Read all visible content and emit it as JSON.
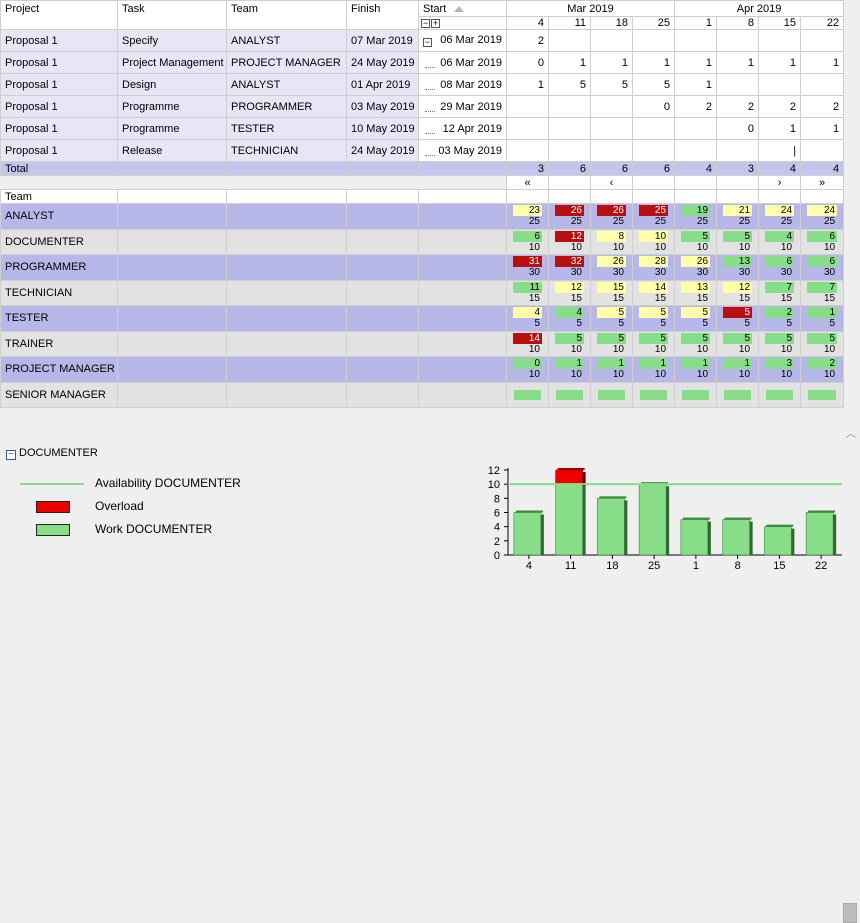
{
  "columns": {
    "project": "Project",
    "task": "Task",
    "team": "Team",
    "finish": "Finish",
    "start": "Start"
  },
  "months": [
    "Mar 2019",
    "Apr 2019"
  ],
  "weeks": [
    "4",
    "11",
    "18",
    "25",
    "1",
    "8",
    "15",
    "22"
  ],
  "tasks": [
    {
      "project": "Proposal 1",
      "task": "Specify",
      "team": "ANALYST",
      "finish": "07 Mar 2019",
      "start": "06 Mar 2019",
      "toggle": true,
      "work": [
        "2",
        "",
        "",
        "",
        "",
        "",
        "",
        ""
      ]
    },
    {
      "project": "Proposal 1",
      "task": "Project Management",
      "team": "PROJECT MANAGER",
      "finish": "24 May 2019",
      "start": "06 Mar 2019",
      "toggle": false,
      "work": [
        "0",
        "1",
        "1",
        "1",
        "1",
        "1",
        "1",
        "1"
      ]
    },
    {
      "project": "Proposal 1",
      "task": "Design",
      "team": "ANALYST",
      "finish": "01 Apr 2019",
      "start": "08 Mar 2019",
      "toggle": false,
      "work": [
        "1",
        "5",
        "5",
        "5",
        "1",
        "",
        "",
        ""
      ]
    },
    {
      "project": "Proposal 1",
      "task": "Programme",
      "team": "PROGRAMMER",
      "finish": "03 May 2019",
      "start": "29 Mar 2019",
      "toggle": false,
      "work": [
        "",
        "",
        "",
        "0",
        "2",
        "2",
        "2",
        "2"
      ]
    },
    {
      "project": "Proposal 1",
      "task": "Programme",
      "team": "TESTER",
      "finish": "10 May 2019",
      "start": "12 Apr 2019",
      "toggle": false,
      "work": [
        "",
        "",
        "",
        "",
        "",
        "0",
        "1",
        "1"
      ]
    },
    {
      "project": "Proposal 1",
      "task": "Release",
      "team": "TECHNICIAN",
      "finish": "24 May 2019",
      "start": "03 May 2019",
      "toggle": false,
      "work": [
        "",
        "",
        "",
        "",
        "",
        "",
        "|",
        ""
      ]
    }
  ],
  "total": {
    "label": "Total",
    "values": [
      "3",
      "6",
      "6",
      "6",
      "4",
      "3",
      "4",
      "4"
    ]
  },
  "nav": {
    "first": "«",
    "prev": "‹",
    "next": "›",
    "last": "»"
  },
  "team_header": "Team",
  "teams": [
    {
      "name": "ANALYST",
      "cells": [
        {
          "work": "23",
          "avail": "25",
          "status": "yellow"
        },
        {
          "work": "26",
          "avail": "25",
          "status": "red"
        },
        {
          "work": "26",
          "avail": "25",
          "status": "red"
        },
        {
          "work": "25",
          "avail": "25",
          "status": "red"
        },
        {
          "work": "19",
          "avail": "25",
          "status": "green"
        },
        {
          "work": "21",
          "avail": "25",
          "status": "yellow"
        },
        {
          "work": "24",
          "avail": "25",
          "status": "yellow"
        },
        {
          "work": "24",
          "avail": "25",
          "status": "yellow"
        }
      ]
    },
    {
      "name": "DOCUMENTER",
      "cells": [
        {
          "work": "6",
          "avail": "10",
          "status": "green"
        },
        {
          "work": "12",
          "avail": "10",
          "status": "red"
        },
        {
          "work": "8",
          "avail": "10",
          "status": "yellow"
        },
        {
          "work": "10",
          "avail": "10",
          "status": "yellow"
        },
        {
          "work": "5",
          "avail": "10",
          "status": "green"
        },
        {
          "work": "5",
          "avail": "10",
          "status": "green"
        },
        {
          "work": "4",
          "avail": "10",
          "status": "green"
        },
        {
          "work": "6",
          "avail": "10",
          "status": "green"
        }
      ]
    },
    {
      "name": "PROGRAMMER",
      "cells": [
        {
          "work": "31",
          "avail": "30",
          "status": "red"
        },
        {
          "work": "32",
          "avail": "30",
          "status": "red"
        },
        {
          "work": "26",
          "avail": "30",
          "status": "yellow"
        },
        {
          "work": "28",
          "avail": "30",
          "status": "yellow"
        },
        {
          "work": "26",
          "avail": "30",
          "status": "yellow"
        },
        {
          "work": "13",
          "avail": "30",
          "status": "green"
        },
        {
          "work": "6",
          "avail": "30",
          "status": "green"
        },
        {
          "work": "6",
          "avail": "30",
          "status": "green"
        }
      ]
    },
    {
      "name": "TECHNICIAN",
      "cells": [
        {
          "work": "11",
          "avail": "15",
          "status": "green"
        },
        {
          "work": "12",
          "avail": "15",
          "status": "yellow"
        },
        {
          "work": "15",
          "avail": "15",
          "status": "yellow"
        },
        {
          "work": "14",
          "avail": "15",
          "status": "yellow"
        },
        {
          "work": "13",
          "avail": "15",
          "status": "yellow"
        },
        {
          "work": "12",
          "avail": "15",
          "status": "yellow"
        },
        {
          "work": "7",
          "avail": "15",
          "status": "green"
        },
        {
          "work": "7",
          "avail": "15",
          "status": "green"
        }
      ]
    },
    {
      "name": "TESTER",
      "cells": [
        {
          "work": "4",
          "avail": "5",
          "status": "yellow"
        },
        {
          "work": "4",
          "avail": "5",
          "status": "green"
        },
        {
          "work": "5",
          "avail": "5",
          "status": "yellow"
        },
        {
          "work": "5",
          "avail": "5",
          "status": "yellow"
        },
        {
          "work": "5",
          "avail": "5",
          "status": "yellow"
        },
        {
          "work": "5",
          "avail": "5",
          "status": "red"
        },
        {
          "work": "2",
          "avail": "5",
          "status": "green"
        },
        {
          "work": "1",
          "avail": "5",
          "status": "green"
        }
      ]
    },
    {
      "name": "TRAINER",
      "cells": [
        {
          "work": "14",
          "avail": "10",
          "status": "red"
        },
        {
          "work": "5",
          "avail": "10",
          "status": "green"
        },
        {
          "work": "5",
          "avail": "10",
          "status": "green"
        },
        {
          "work": "5",
          "avail": "10",
          "status": "green"
        },
        {
          "work": "5",
          "avail": "10",
          "status": "green"
        },
        {
          "work": "5",
          "avail": "10",
          "status": "green"
        },
        {
          "work": "5",
          "avail": "10",
          "status": "green"
        },
        {
          "work": "5",
          "avail": "10",
          "status": "green"
        }
      ]
    },
    {
      "name": "PROJECT MANAGER",
      "cells": [
        {
          "work": "0",
          "avail": "10",
          "status": "green"
        },
        {
          "work": "1",
          "avail": "10",
          "status": "green"
        },
        {
          "work": "1",
          "avail": "10",
          "status": "green"
        },
        {
          "work": "1",
          "avail": "10",
          "status": "green"
        },
        {
          "work": "1",
          "avail": "10",
          "status": "green"
        },
        {
          "work": "1",
          "avail": "10",
          "status": "green"
        },
        {
          "work": "3",
          "avail": "10",
          "status": "green"
        },
        {
          "work": "2",
          "avail": "10",
          "status": "green"
        }
      ]
    },
    {
      "name": "SENIOR MANAGER",
      "cells": [
        {
          "work": "",
          "avail": "",
          "status": "empty"
        },
        {
          "work": "",
          "avail": "",
          "status": "empty"
        },
        {
          "work": "",
          "avail": "",
          "status": "empty"
        },
        {
          "work": "",
          "avail": "",
          "status": "empty"
        },
        {
          "work": "",
          "avail": "",
          "status": "empty"
        },
        {
          "work": "",
          "avail": "",
          "status": "empty"
        },
        {
          "work": "",
          "avail": "",
          "status": "empty"
        },
        {
          "work": "",
          "avail": "",
          "status": "empty"
        }
      ]
    }
  ],
  "status_colors": {
    "green": "#88dd88",
    "yellow": "#ffffaa",
    "red": "#b81010",
    "row_alt": "#b7b7ea",
    "row_plain": "#e2e2e2"
  },
  "detail": {
    "title": "DOCUMENTER",
    "legend": {
      "availability": "Availability DOCUMENTER",
      "overload": "Overload",
      "work": "Work  DOCUMENTER"
    }
  },
  "chart_data": {
    "type": "bar",
    "categories": [
      "4",
      "11",
      "18",
      "25",
      "1",
      "8",
      "15",
      "22"
    ],
    "series": [
      {
        "name": "Work  DOCUMENTER",
        "values": [
          6,
          10,
          8,
          10,
          5,
          5,
          4,
          6
        ],
        "color": "#88dd88"
      },
      {
        "name": "Overload",
        "values": [
          0,
          2,
          0,
          0,
          0,
          0,
          0,
          0
        ],
        "color": "#ee0000"
      }
    ],
    "availability": {
      "name": "Availability DOCUMENTER",
      "value": 10,
      "color": "#88dd88"
    },
    "ylim": [
      0,
      12
    ],
    "yticks": [
      0,
      2,
      4,
      6,
      8,
      10,
      12
    ],
    "stacked": true,
    "grid": false
  }
}
